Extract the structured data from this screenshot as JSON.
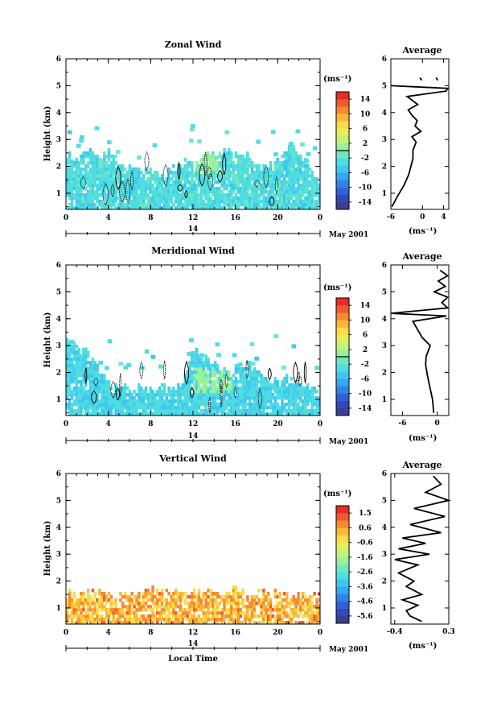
{
  "chart_data": [
    {
      "type": "heatmap",
      "title": "Zonal Wind",
      "ylabel": "Height (km)",
      "ylim": [
        0.4,
        6
      ],
      "yticks": [
        "1",
        "2",
        "3",
        "4",
        "5",
        "6"
      ],
      "xlim": [
        0,
        24
      ],
      "xticks": [
        "0",
        "4",
        "8",
        "12",
        "16",
        "20",
        "0"
      ],
      "date_axis": {
        "day": "14",
        "month_label": "May 2001"
      },
      "colorbar": {
        "unit": "(ms⁻¹)",
        "ticks": [
          "14",
          "10",
          "6",
          "2",
          "-2",
          "-6",
          "-10",
          "-14"
        ],
        "range": [
          -16,
          16
        ],
        "marker": 0
      },
      "base_value": -3,
      "cover_top": [
        2.4,
        2.2,
        2.5,
        2.1,
        2.7,
        1.9,
        2.0,
        1.8,
        1.7,
        1.6,
        1.9,
        2.2,
        2.0,
        2.4,
        2.3,
        2.6,
        2.5,
        2.3,
        2.0,
        1.9,
        2.2,
        2.7,
        2.4,
        1.9,
        1.3
      ],
      "patch": {
        "x": [
          12,
          14.5
        ],
        "y": [
          1.8,
          2.8
        ],
        "value": 1
      },
      "contour_label": "0 ms⁻¹ contour",
      "avg": {
        "title": "Average",
        "xlabel": "(ms⁻¹)",
        "xticks": [
          "-6",
          "0",
          "4"
        ],
        "xlim": [
          -6,
          5
        ],
        "ylim": [
          0.4,
          6
        ],
        "profile": [
          [
            -5.8,
            0.5
          ],
          [
            -4.7,
            0.9
          ],
          [
            -3.5,
            1.3
          ],
          [
            -2.6,
            1.7
          ],
          [
            -2.2,
            2.0
          ],
          [
            -1.8,
            2.3
          ],
          [
            -1.8,
            2.6
          ],
          [
            -1.2,
            2.9
          ],
          [
            -2.0,
            3.1
          ],
          [
            -0.3,
            3.3
          ],
          [
            -1.4,
            3.5
          ],
          [
            -1.0,
            3.7
          ],
          [
            -2.0,
            3.9
          ],
          [
            -2.7,
            4.1
          ],
          [
            -0.9,
            4.3
          ],
          [
            -2.9,
            4.6
          ],
          [
            4.5,
            4.8
          ],
          [
            4.8,
            4.9
          ],
          [
            -6,
            5.0
          ]
        ],
        "extra": [
          [
            [
              -0.5,
              5.3
            ],
            [
              -0.1,
              5.2
            ]
          ],
          [
            [
              2.6,
              5.3
            ],
            [
              2.9,
              5.2
            ]
          ]
        ]
      }
    },
    {
      "type": "heatmap",
      "title": "Meridional Wind",
      "ylabel": "Height (km)",
      "ylim": [
        0.4,
        6
      ],
      "yticks": [
        "1",
        "2",
        "3",
        "4",
        "5",
        "6"
      ],
      "xlim": [
        0,
        24
      ],
      "xticks": [
        "0",
        "4",
        "8",
        "12",
        "16",
        "20",
        "0"
      ],
      "date_axis": {
        "day": "14",
        "month_label": "May 2001"
      },
      "colorbar": {
        "unit": "(ms⁻¹)",
        "ticks": [
          "14",
          "10",
          "6",
          "2",
          "-2",
          "-6",
          "-10",
          "-14"
        ],
        "range": [
          -16,
          16
        ],
        "marker": 0
      },
      "base_value": -3.5,
      "cover_top": [
        3.3,
        2.9,
        2.6,
        2.2,
        1.4,
        1.5,
        1.3,
        1.4,
        1.3,
        1.4,
        1.4,
        1.6,
        2.8,
        2.5,
        2.2,
        1.9,
        2.1,
        2.3,
        2.0,
        1.8,
        1.6,
        1.7,
        1.6,
        1.4,
        1.2
      ],
      "patch": {
        "x": [
          12,
          15.5
        ],
        "y": [
          1.3,
          2.3
        ],
        "value": 1
      },
      "contour_label": "0 ms⁻¹ contour",
      "avg": {
        "title": "Average",
        "xlabel": "(ms⁻¹)",
        "xticks": [
          "-6",
          "0"
        ],
        "xlim": [
          -8,
          2
        ],
        "ylim": [
          0.4,
          6
        ],
        "profile": [
          [
            -0.6,
            0.5
          ],
          [
            -0.8,
            1.0
          ],
          [
            -1.3,
            1.5
          ],
          [
            -1.7,
            1.9
          ],
          [
            -2.0,
            2.3
          ],
          [
            -1.9,
            2.6
          ],
          [
            -1.2,
            3.0
          ],
          [
            -2.6,
            3.3
          ],
          [
            -3.4,
            3.6
          ],
          [
            -4.2,
            3.9
          ],
          [
            1.6,
            4.1
          ],
          [
            -8,
            4.2
          ],
          [
            1.8,
            4.4
          ],
          [
            0.8,
            4.6
          ],
          [
            1.8,
            4.8
          ],
          [
            -0.5,
            5.0
          ],
          [
            1.4,
            5.2
          ],
          [
            0.2,
            5.4
          ],
          [
            1.8,
            5.6
          ],
          [
            0.5,
            5.8
          ]
        ]
      }
    },
    {
      "type": "heatmap",
      "title": "Vertical Wind",
      "ylabel": "Height (km)",
      "xlabel": "Local Time",
      "ylim": [
        0.4,
        6
      ],
      "yticks": [
        "1",
        "2",
        "3",
        "4",
        "5",
        "6"
      ],
      "xlim": [
        0,
        24
      ],
      "xticks": [
        "0",
        "4",
        "8",
        "12",
        "16",
        "20",
        "0"
      ],
      "date_axis": {
        "day": "14",
        "month_label": "May 2001"
      },
      "colorbar": {
        "unit": "(ms⁻¹)",
        "ticks": [
          "1.5",
          "0.6",
          "-0.6",
          "-1.6",
          "-2.6",
          "-3.6",
          "-4.6",
          "-5.6"
        ],
        "range": [
          -6,
          2
        ],
        "marker": null
      },
      "base_value": 0.3,
      "cover_top": [
        1.45,
        1.45,
        1.45,
        1.45,
        1.45,
        1.4,
        1.45,
        1.5,
        1.55,
        1.65,
        1.6,
        1.55,
        1.55,
        1.6,
        1.55,
        1.5,
        1.6,
        1.5,
        1.45,
        1.45,
        1.45,
        1.45,
        1.45,
        1.45,
        1.45
      ],
      "avg": {
        "title": "Average",
        "xlabel": "(ms⁻¹)",
        "xticks": [
          "-0.4",
          "0.3"
        ],
        "xlim": [
          -0.45,
          0.3
        ],
        "ylim": [
          0.4,
          6
        ],
        "profile": [
          [
            -0.05,
            0.5
          ],
          [
            -0.2,
            0.7
          ],
          [
            -0.25,
            0.9
          ],
          [
            -0.1,
            1.1
          ],
          [
            -0.3,
            1.3
          ],
          [
            -0.05,
            1.5
          ],
          [
            -0.25,
            1.8
          ],
          [
            -0.15,
            2.0
          ],
          [
            -0.35,
            2.3
          ],
          [
            -0.1,
            2.6
          ],
          [
            -0.4,
            2.8
          ],
          [
            0.05,
            3.0
          ],
          [
            -0.35,
            3.2
          ],
          [
            0.0,
            3.4
          ],
          [
            -0.3,
            3.6
          ],
          [
            0.2,
            3.8
          ],
          [
            -0.2,
            4.1
          ],
          [
            0.25,
            4.4
          ],
          [
            -0.15,
            4.7
          ],
          [
            0.3,
            5.0
          ],
          [
            0.0,
            5.3
          ],
          [
            0.2,
            5.6
          ],
          [
            0.1,
            5.9
          ]
        ]
      }
    }
  ]
}
